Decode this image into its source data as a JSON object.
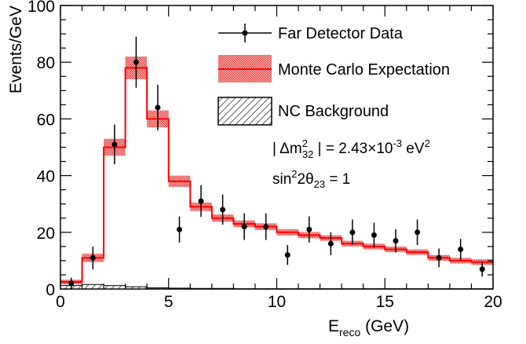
{
  "chart_data": {
    "type": "histogram",
    "xlabel": {
      "base": "E",
      "sub": "reco",
      "rest": " (GeV)"
    },
    "ylabel": "Events/GeV",
    "xlim": [
      0,
      20
    ],
    "ylim": [
      0,
      100
    ],
    "xticks": [
      "0",
      "5",
      "10",
      "15",
      "20"
    ],
    "yticks": [
      "0",
      "20",
      "40",
      "60",
      "80",
      "100"
    ],
    "bin_edges": [
      0,
      1,
      2,
      3,
      4,
      5,
      6,
      7,
      8,
      9,
      10,
      11,
      12,
      13,
      14,
      15,
      16,
      17,
      18,
      19,
      20
    ],
    "series": [
      {
        "name": "Far Detector Data",
        "kind": "points_with_errors",
        "x": [
          0.5,
          1.5,
          2.5,
          3.5,
          4.5,
          5.5,
          6.5,
          7.5,
          8.5,
          9.5,
          10.5,
          11.5,
          12.5,
          13.5,
          14.5,
          15.5,
          16.5,
          17.5,
          18.5,
          19.5
        ],
        "y": [
          2,
          11,
          51,
          80,
          64,
          21,
          31,
          28,
          22,
          22,
          12,
          21,
          16,
          20,
          19,
          17,
          20,
          11,
          14,
          7
        ],
        "yerr": [
          2,
          4,
          7,
          9,
          8,
          4.6,
          5.6,
          5.3,
          4.7,
          4.7,
          3.5,
          4.6,
          4,
          4.5,
          4.4,
          4.1,
          4.5,
          3.3,
          3.7,
          2.6
        ],
        "color": "#000000"
      },
      {
        "name": "Monte Carlo Expectation",
        "kind": "step_with_band",
        "values": [
          2.5,
          11,
          50,
          78,
          60,
          38,
          29,
          25,
          23,
          22,
          20,
          19,
          18,
          16,
          15,
          14,
          13,
          11,
          10,
          9.5
        ],
        "band": [
          0.8,
          1.5,
          3,
          4,
          3,
          2,
          1.5,
          1.3,
          1.2,
          1.2,
          1.1,
          1.1,
          1,
          1,
          1,
          1,
          1,
          1,
          1,
          1
        ],
        "color": "#ff0000",
        "band_color": "#f08080"
      },
      {
        "name": "NC Background",
        "kind": "hatched_step",
        "values": [
          1.2,
          1.6,
          1.2,
          0.8,
          0.4,
          0.3,
          0.2,
          0.2,
          0.1,
          0.1,
          0.1,
          0.1,
          0.1,
          0.1,
          0.1,
          0.1,
          0.1,
          0.1,
          0.1,
          0.1
        ],
        "color": "#000000"
      }
    ],
    "legend": {
      "placement": "top-right",
      "items": [
        "Far Detector Data",
        "Monte Carlo Expectation",
        "NC Background"
      ]
    },
    "annotations": {
      "line1": {
        "pre": "| Δm",
        "sup": "2",
        "sub": "32",
        "mid": " | = 2.43×10",
        "exp": "-3",
        "unit": " eV",
        "unit_exp": "2"
      },
      "line2": {
        "pre": "sin",
        "sup": "2",
        "mid": "2θ",
        "sub": "23",
        "rest": " = 1"
      }
    },
    "grid": false
  }
}
